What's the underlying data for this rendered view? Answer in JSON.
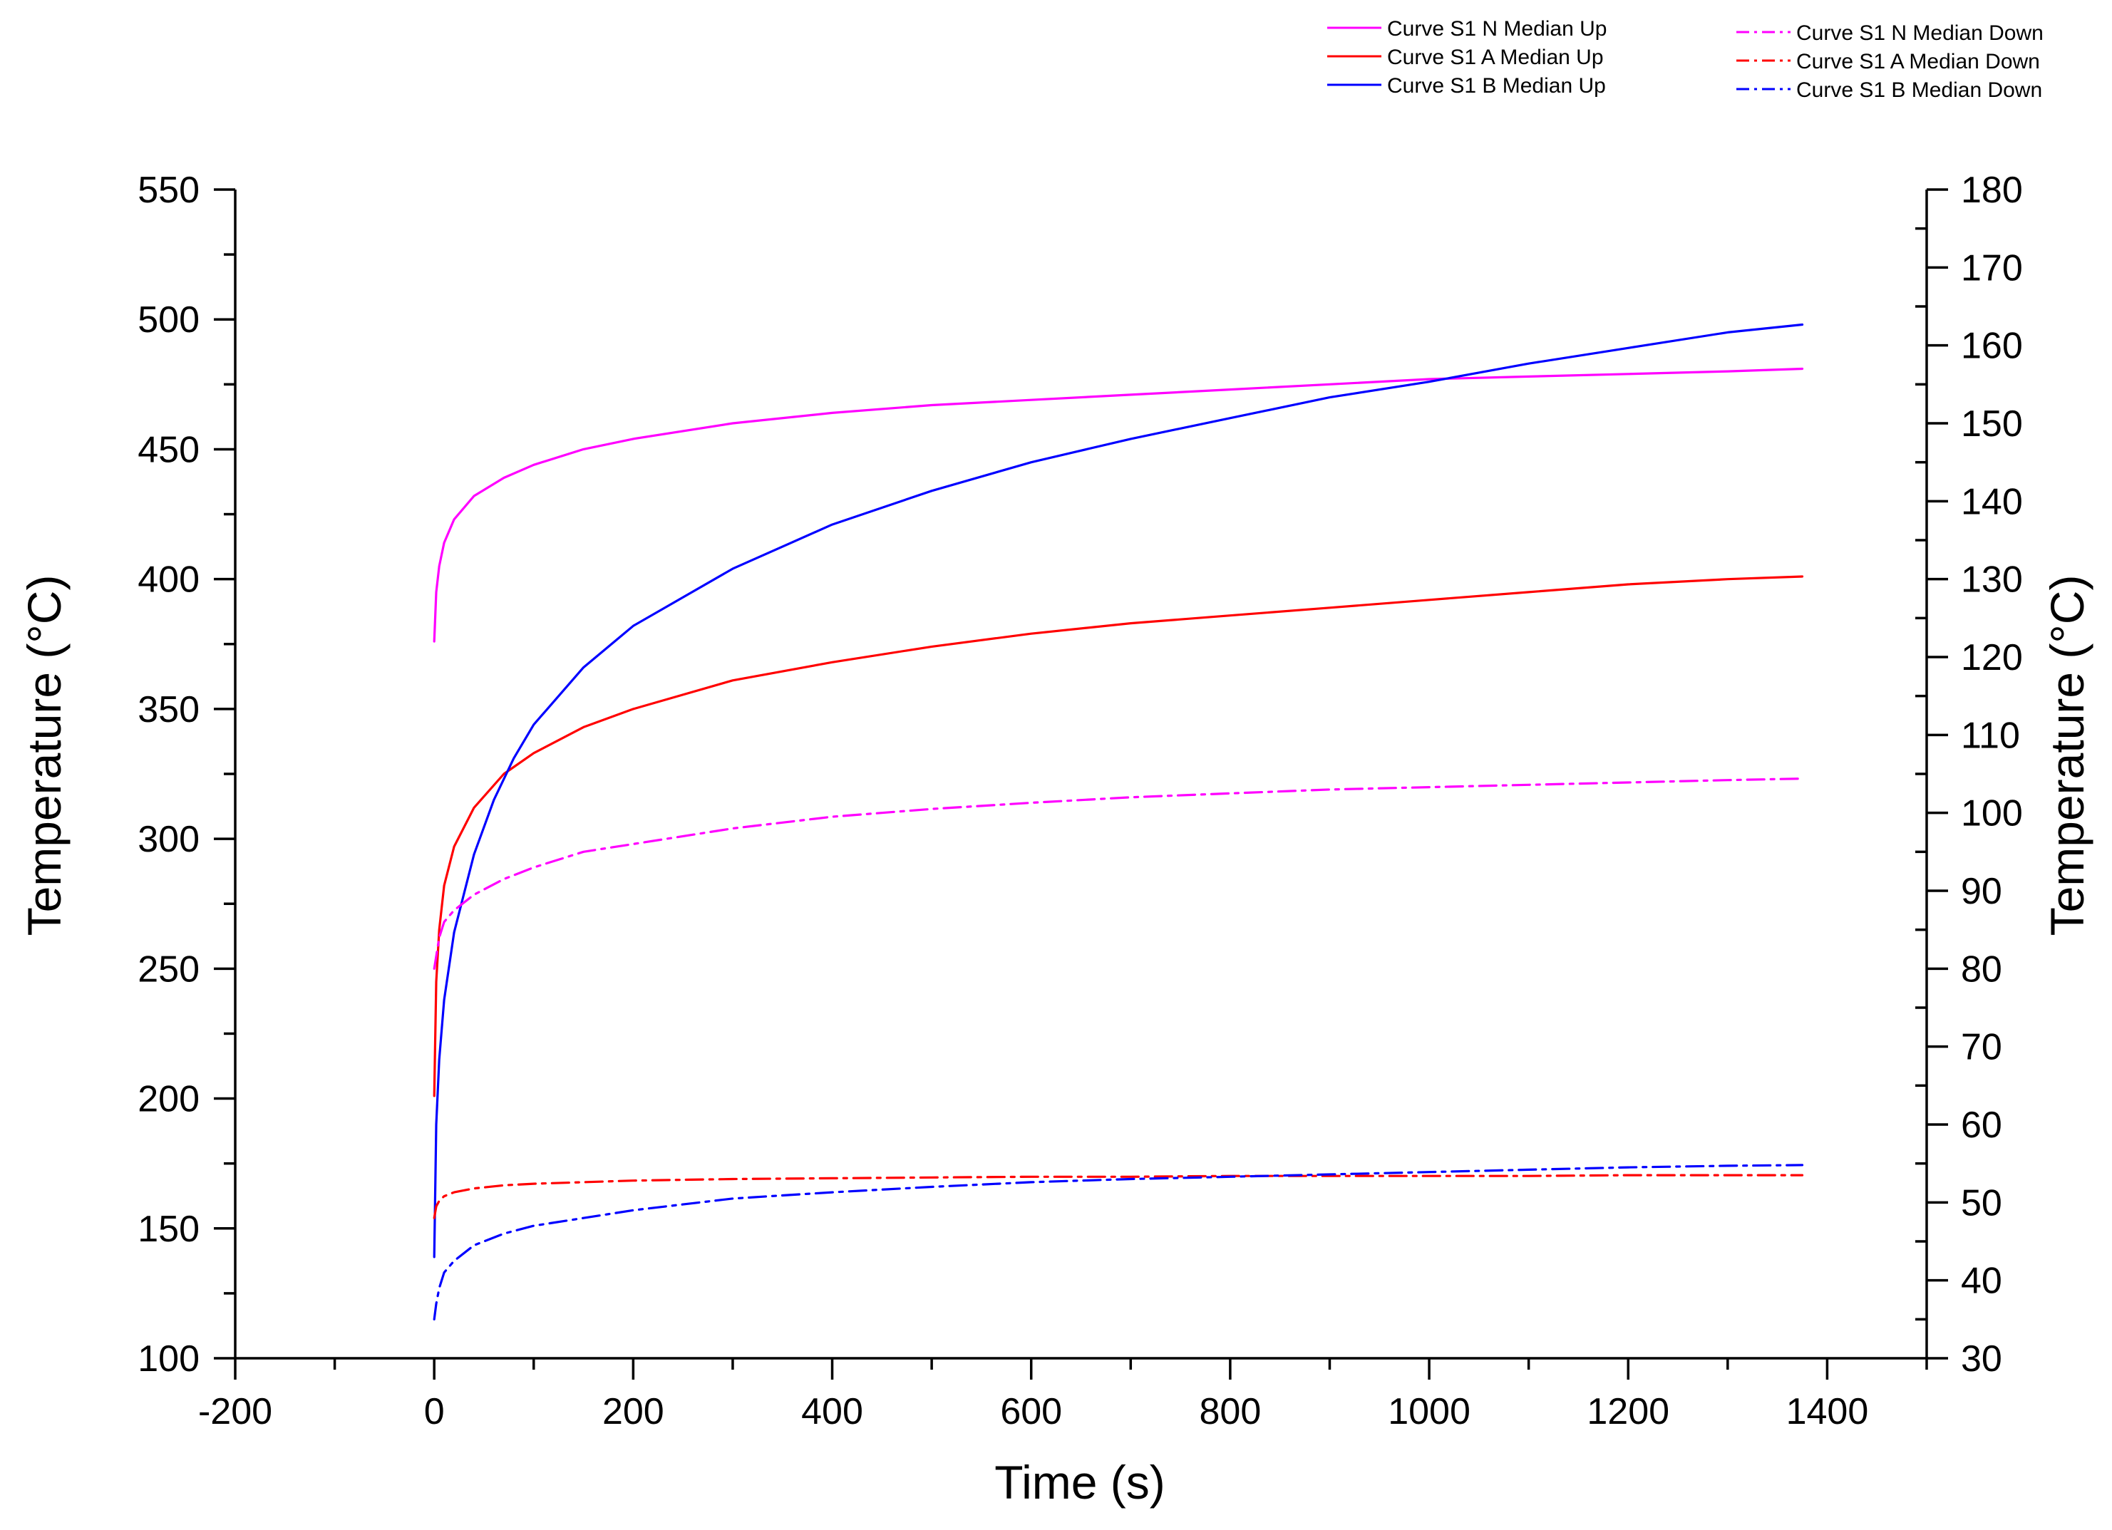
{
  "chart_data": {
    "type": "line",
    "xlabel": "Time (s)",
    "ylabel_left": "Temperature (°C)",
    "ylabel_right": "Temperature (°C)",
    "xlim": [
      -200,
      1500
    ],
    "ylim_left": [
      100,
      550
    ],
    "ylim_right": [
      30,
      180
    ],
    "x_ticks": [
      -200,
      0,
      200,
      400,
      600,
      800,
      1000,
      1200,
      1400
    ],
    "y_ticks_left": [
      100,
      150,
      200,
      250,
      300,
      350,
      400,
      450,
      500,
      550
    ],
    "y_ticks_right": [
      30,
      40,
      50,
      60,
      70,
      80,
      90,
      100,
      110,
      120,
      130,
      140,
      150,
      160,
      170,
      180
    ],
    "grid": false,
    "legend_position": "top-right",
    "series": [
      {
        "name": "Curve S1 N Median Up",
        "axis": "left",
        "style": "solid",
        "color": "#ff00ff",
        "x": [
          0,
          2,
          5,
          10,
          20,
          40,
          70,
          100,
          150,
          200,
          300,
          400,
          500,
          600,
          700,
          800,
          900,
          1000,
          1100,
          1200,
          1300,
          1375
        ],
        "y": [
          376,
          395,
          405,
          414,
          423,
          432,
          439,
          444,
          450,
          454,
          460,
          464,
          467,
          469,
          471,
          473,
          475,
          477,
          478,
          479,
          480,
          481
        ]
      },
      {
        "name": "Curve S1 A Median Up",
        "axis": "left",
        "style": "solid",
        "color": "#ff0000",
        "x": [
          0,
          2,
          5,
          10,
          20,
          40,
          70,
          100,
          150,
          200,
          300,
          400,
          500,
          600,
          700,
          800,
          900,
          1000,
          1100,
          1200,
          1300,
          1375
        ],
        "y": [
          201,
          245,
          265,
          282,
          297,
          312,
          325,
          333,
          343,
          350,
          361,
          368,
          374,
          379,
          383,
          386,
          389,
          392,
          395,
          398,
          400,
          401
        ]
      },
      {
        "name": "Curve S1 B Median Up",
        "axis": "left",
        "style": "solid",
        "color": "#0000ff",
        "x": [
          0,
          2,
          5,
          10,
          20,
          40,
          60,
          80,
          100,
          150,
          200,
          300,
          400,
          500,
          600,
          700,
          800,
          900,
          1000,
          1100,
          1200,
          1300,
          1375
        ],
        "y": [
          139,
          190,
          215,
          238,
          264,
          294,
          315,
          331,
          344,
          366,
          382,
          404,
          421,
          434,
          445,
          454,
          462,
          470,
          476,
          483,
          489,
          495,
          498
        ]
      },
      {
        "name": "Curve S1 N Median Down",
        "axis": "right",
        "style": "dashdot",
        "color": "#ff00ff",
        "x": [
          0,
          5,
          10,
          20,
          40,
          70,
          100,
          150,
          200,
          300,
          400,
          500,
          600,
          700,
          800,
          900,
          1000,
          1100,
          1200,
          1300,
          1375
        ],
        "y": [
          80,
          84,
          86,
          87.5,
          89.5,
          91.5,
          93,
          95,
          96,
          98,
          99.5,
          100.5,
          101.3,
          102,
          102.5,
          103,
          103.3,
          103.6,
          103.9,
          104.2,
          104.4
        ]
      },
      {
        "name": "Curve S1 A Median Down",
        "axis": "right",
        "style": "dashdot",
        "color": "#ff0000",
        "x": [
          0,
          2,
          5,
          10,
          20,
          40,
          70,
          100,
          150,
          200,
          300,
          400,
          500,
          600,
          700,
          800,
          900,
          1000,
          1100,
          1200,
          1300,
          1375
        ],
        "y": [
          48,
          49.5,
          50.2,
          50.8,
          51.3,
          51.8,
          52.2,
          52.4,
          52.6,
          52.8,
          53,
          53.1,
          53.2,
          53.3,
          53.3,
          53.4,
          53.4,
          53.4,
          53.4,
          53.5,
          53.5,
          53.5
        ]
      },
      {
        "name": "Curve S1 B Median Down",
        "axis": "right",
        "style": "dashdot",
        "color": "#0000ff",
        "x": [
          0,
          2,
          5,
          10,
          20,
          40,
          70,
          100,
          150,
          200,
          300,
          400,
          500,
          600,
          700,
          800,
          900,
          1000,
          1100,
          1200,
          1300,
          1375
        ],
        "y": [
          35,
          37,
          39,
          41,
          42.5,
          44.5,
          46,
          47,
          48,
          49,
          50.5,
          51.3,
          52,
          52.6,
          53,
          53.3,
          53.6,
          53.9,
          54.2,
          54.5,
          54.7,
          54.8
        ]
      }
    ]
  }
}
